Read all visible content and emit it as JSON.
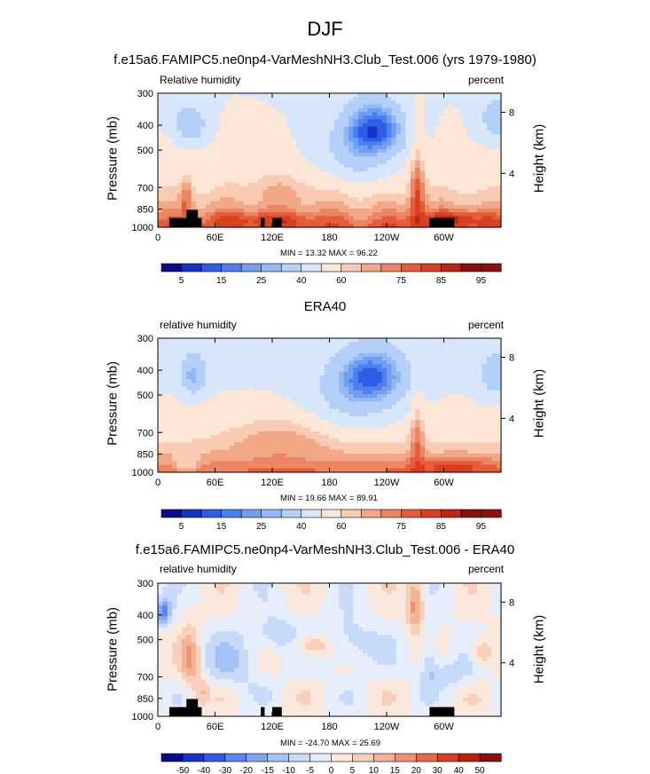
{
  "title": "DJF",
  "panels": [
    {
      "title": "f.e15a6.FAMIPC5.ne0np4-VarMeshNH3.Club_Test.006 (yrs 1979-1980)",
      "left_label": "Relative humidity",
      "right_label": "percent",
      "y_label": "Pressure (mb)",
      "y2_label": "Height (km)",
      "min_max": "MIN =  13.32  MAX =  96.22",
      "colorbar_labels": [
        "5",
        "15",
        "25",
        "40",
        "60",
        "75",
        "85",
        "95"
      ]
    },
    {
      "title": "ERA40",
      "left_label": "relative humidity",
      "right_label": "percent",
      "y_label": "Pressure (mb)",
      "y2_label": "Height (km)",
      "min_max": "MIN =  19.66  MAX =  89.91",
      "colorbar_labels": [
        "5",
        "15",
        "25",
        "40",
        "60",
        "75",
        "85",
        "95"
      ]
    },
    {
      "title": "f.e15a6.FAMIPC5.ne0np4-VarMeshNH3.Club_Test.006 - ERA40",
      "left_label": "relative humidity",
      "right_label": "percent",
      "y_label": "Pressure (mb)",
      "y2_label": "Height (km)",
      "min_max": "MIN = -24.70  MAX =  25.69",
      "colorbar_labels": [
        "-50",
        "-40",
        "-30",
        "-20",
        "-15",
        "-10",
        "-5",
        "0",
        "5",
        "10",
        "15",
        "20",
        "30",
        "40",
        "50"
      ]
    }
  ],
  "chart_data": [
    {
      "type": "heatmap",
      "title": "f.e15a6.FAMIPC5.ne0np4-VarMeshNH3.Club_Test.006 (yrs 1979-1980)",
      "xlabel": "",
      "ylabel": "Pressure (mb)",
      "y2label": "Height (km)",
      "x_ticks": [
        "0",
        "60E",
        "120E",
        "180",
        "120W",
        "60W"
      ],
      "x_tick_values": [
        0,
        60,
        120,
        180,
        240,
        300
      ],
      "xlim": [
        0,
        360
      ],
      "y_ticks": [
        "300",
        "400",
        "500",
        "700",
        "850",
        "1000"
      ],
      "y_tick_values": [
        300,
        400,
        500,
        700,
        850,
        1000
      ],
      "ylim": [
        1000,
        300
      ],
      "y_scale": "log",
      "y2_ticks": [
        "8",
        "4"
      ],
      "y2_tick_values": [
        8,
        4
      ],
      "min": 13.32,
      "max": 96.22,
      "levels": [
        5,
        10,
        15,
        20,
        25,
        30,
        40,
        50,
        60,
        65,
        70,
        75,
        80,
        85,
        90,
        95
      ],
      "colorbar_labels": [
        "5",
        "15",
        "25",
        "40",
        "60",
        "75",
        "85",
        "95"
      ],
      "units": "percent"
    },
    {
      "type": "heatmap",
      "title": "ERA40",
      "xlabel": "",
      "ylabel": "Pressure (mb)",
      "y2label": "Height (km)",
      "x_ticks": [
        "0",
        "60E",
        "120E",
        "180",
        "120W",
        "60W"
      ],
      "x_tick_values": [
        0,
        60,
        120,
        180,
        240,
        300
      ],
      "xlim": [
        0,
        360
      ],
      "y_ticks": [
        "300",
        "400",
        "500",
        "700",
        "850",
        "1000"
      ],
      "y_tick_values": [
        300,
        400,
        500,
        700,
        850,
        1000
      ],
      "ylim": [
        1000,
        300
      ],
      "y_scale": "log",
      "y2_ticks": [
        "8",
        "4"
      ],
      "y2_tick_values": [
        8,
        4
      ],
      "min": 19.66,
      "max": 89.91,
      "levels": [
        5,
        10,
        15,
        20,
        25,
        30,
        40,
        50,
        60,
        65,
        70,
        75,
        80,
        85,
        90,
        95
      ],
      "colorbar_labels": [
        "5",
        "15",
        "25",
        "40",
        "60",
        "75",
        "85",
        "95"
      ],
      "units": "percent"
    },
    {
      "type": "heatmap",
      "title": "f.e15a6.FAMIPC5.ne0np4-VarMeshNH3.Club_Test.006 - ERA40",
      "xlabel": "",
      "ylabel": "Pressure (mb)",
      "y2label": "Height (km)",
      "x_ticks": [
        "0",
        "60E",
        "120E",
        "180",
        "120W",
        "60W"
      ],
      "x_tick_values": [
        0,
        60,
        120,
        180,
        240,
        300
      ],
      "xlim": [
        0,
        360
      ],
      "y_ticks": [
        "300",
        "400",
        "500",
        "700",
        "850",
        "1000"
      ],
      "y_tick_values": [
        300,
        400,
        500,
        700,
        850,
        1000
      ],
      "ylim": [
        1000,
        300
      ],
      "y_scale": "log",
      "y2_ticks": [
        "8",
        "4"
      ],
      "y2_tick_values": [
        8,
        4
      ],
      "min": -24.7,
      "max": 25.69,
      "levels": [
        -50,
        -40,
        -30,
        -20,
        -15,
        -10,
        -5,
        0,
        5,
        10,
        15,
        20,
        30,
        40,
        50
      ],
      "colorbar_labels": [
        "-50",
        "-40",
        "-30",
        "-20",
        "-15",
        "-10",
        "-5",
        "0",
        "5",
        "10",
        "15",
        "20",
        "30",
        "40",
        "50"
      ],
      "units": "percent"
    }
  ],
  "colormaps": {
    "humidity": [
      "#0b0a8c",
      "#1732c8",
      "#2e5ee6",
      "#4f7fee",
      "#6f9ff2",
      "#93b8f4",
      "#b5d0f8",
      "#d7e6fa",
      "#fbe6d8",
      "#f8cbb2",
      "#f2a887",
      "#ec8563",
      "#e55c3a",
      "#d9401e",
      "#b82712",
      "#8a1010"
    ],
    "difference": [
      "#0b0a8c",
      "#1732c8",
      "#2e5ee6",
      "#5a86ef",
      "#7fa6f3",
      "#a5c2f6",
      "#c8dafa",
      "#e6eefb",
      "#fbe8dc",
      "#f8d0ba",
      "#f4b397",
      "#ee9270",
      "#e6694a",
      "#d6401f",
      "#b8200e",
      "#8a1010"
    ]
  }
}
